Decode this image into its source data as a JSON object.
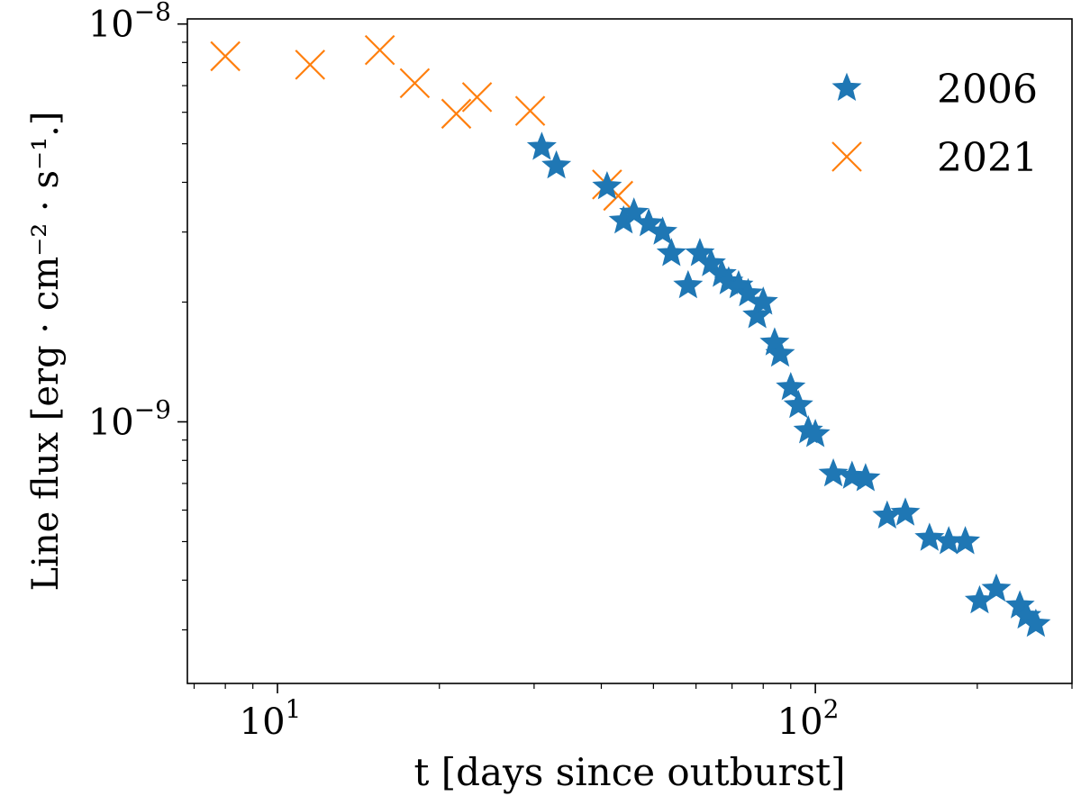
{
  "chart_data": {
    "type": "scatter",
    "title": "",
    "xlabel": "t [days since outburst]",
    "ylabel": "Line flux [erg · cm⁻² · s⁻¹.]",
    "xscale": "log",
    "yscale": "log",
    "xlim": [
      6.8,
      300
    ],
    "ylim": [
      2.2e-10,
      1.03e-08
    ],
    "x_major_ticks": [
      {
        "value": 10,
        "base": "10",
        "exp": "1"
      },
      {
        "value": 100,
        "base": "10",
        "exp": "2"
      }
    ],
    "y_major_ticks": [
      {
        "value": 1e-09,
        "base": "10",
        "exp": "−9"
      },
      {
        "value": 1e-08,
        "base": "10",
        "exp": "−8"
      }
    ],
    "legend_position": "top-right",
    "series": [
      {
        "name": "2006",
        "marker": "star",
        "color": "#1f77b4",
        "points": [
          [
            31,
            4.9e-09
          ],
          [
            33,
            4.4e-09
          ],
          [
            41,
            3.9e-09
          ],
          [
            44,
            3.2e-09
          ],
          [
            46,
            3.35e-09
          ],
          [
            49,
            3.15e-09
          ],
          [
            52,
            3e-09
          ],
          [
            54,
            2.65e-09
          ],
          [
            58,
            2.2e-09
          ],
          [
            61,
            2.65e-09
          ],
          [
            64,
            2.5e-09
          ],
          [
            67,
            2.35e-09
          ],
          [
            69,
            2.25e-09
          ],
          [
            72,
            2.2e-09
          ],
          [
            75,
            2.1e-09
          ],
          [
            78,
            1.85e-09
          ],
          [
            80,
            2e-09
          ],
          [
            84,
            1.58e-09
          ],
          [
            86,
            1.48e-09
          ],
          [
            90,
            1.22e-09
          ],
          [
            93,
            1.1e-09
          ],
          [
            97,
            9.5e-10
          ],
          [
            100,
            9.3e-10
          ],
          [
            108,
            7.4e-10
          ],
          [
            117,
            7.3e-10
          ],
          [
            124,
            7.2e-10
          ],
          [
            136,
            5.8e-10
          ],
          [
            147,
            5.9e-10
          ],
          [
            163,
            5.1e-10
          ],
          [
            177,
            5e-10
          ],
          [
            190,
            5e-10
          ],
          [
            202,
            3.55e-10
          ],
          [
            217,
            3.8e-10
          ],
          [
            240,
            3.45e-10
          ],
          [
            247,
            3.25e-10
          ],
          [
            257,
            3.1e-10
          ]
        ]
      },
      {
        "name": "2021",
        "marker": "x",
        "color": "#ff7f0e",
        "points": [
          [
            8,
            8.3e-09
          ],
          [
            11.5,
            7.9e-09
          ],
          [
            15.5,
            8.6e-09
          ],
          [
            18,
            7.1e-09
          ],
          [
            21.5,
            5.95e-09
          ],
          [
            23.5,
            6.55e-09
          ],
          [
            29.5,
            6.05e-09
          ],
          [
            41,
            3.95e-09
          ],
          [
            43,
            3.7e-09
          ]
        ]
      }
    ]
  }
}
